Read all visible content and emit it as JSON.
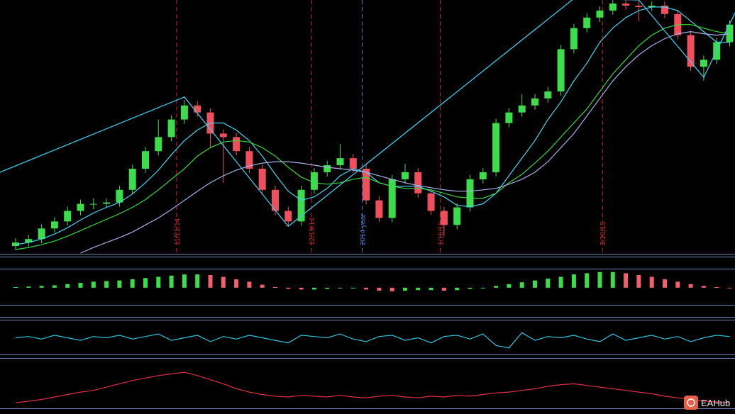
{
  "chart_data": [
    {
      "type": "candlestick",
      "ylim": [
        0,
        360
      ],
      "up_color": "#3ddc4a",
      "down_color": "#f0505e",
      "open": [
        10,
        15,
        20,
        35,
        45,
        60,
        70,
        70,
        72,
        90,
        120,
        145,
        165,
        190,
        210,
        200,
        170,
        165,
        145,
        120,
        90,
        60,
        45,
        90,
        115,
        125,
        135,
        120,
        75,
        50,
        105,
        115,
        85,
        60,
        40,
        65,
        105,
        115,
        185,
        200,
        210,
        220,
        230,
        290,
        320,
        335,
        345,
        355,
        352,
        350,
        352,
        340,
        310,
        265,
        275,
        300
      ],
      "high": [
        21,
        26,
        41,
        51,
        66,
        76,
        78,
        78,
        96,
        126,
        151,
        190,
        196,
        218,
        216,
        206,
        176,
        171,
        151,
        126,
        96,
        66,
        96,
        121,
        131,
        155,
        141,
        126,
        81,
        111,
        127,
        121,
        91,
        66,
        71,
        111,
        121,
        191,
        206,
        226,
        226,
        236,
        296,
        326,
        341,
        351,
        361,
        362,
        358,
        358,
        358,
        346,
        316,
        281,
        306,
        331
      ],
      "low": [
        4,
        9,
        14,
        29,
        39,
        54,
        62,
        64,
        66,
        84,
        114,
        139,
        159,
        184,
        194,
        150,
        100,
        139,
        114,
        84,
        54,
        38,
        39,
        84,
        109,
        119,
        114,
        69,
        44,
        44,
        99,
        79,
        54,
        24,
        34,
        59,
        99,
        109,
        179,
        194,
        204,
        214,
        224,
        284,
        314,
        329,
        339,
        346,
        330,
        344,
        334,
        304,
        259,
        245,
        269,
        294
      ],
      "close": [
        15,
        20,
        35,
        45,
        60,
        70,
        70,
        72,
        90,
        120,
        145,
        165,
        190,
        210,
        200,
        170,
        165,
        145,
        120,
        90,
        60,
        45,
        90,
        115,
        125,
        135,
        120,
        75,
        50,
        105,
        115,
        85,
        60,
        40,
        65,
        105,
        115,
        185,
        200,
        210,
        220,
        230,
        290,
        320,
        335,
        345,
        355,
        352,
        350,
        352,
        340,
        310,
        265,
        275,
        300,
        325
      ],
      "lines": [
        {
          "color": "#46d6f0",
          "values": [
            12,
            15,
            20,
            27,
            36,
            47,
            57,
            65,
            72,
            84,
            100,
            118,
            140,
            160,
            175,
            185,
            185,
            175,
            160,
            138,
            112,
            88,
            75,
            80,
            92,
            110,
            120,
            115,
            100,
            95,
            95,
            95,
            88,
            80,
            68,
            66,
            70,
            85,
            110,
            135,
            160,
            190,
            215,
            245,
            270,
            300,
            320,
            335,
            345,
            350,
            350,
            345,
            330,
            315,
            300,
            300
          ]
        },
        {
          "color": "#3ad83a",
          "values": [
            5,
            8,
            12,
            17,
            24,
            32,
            40,
            48,
            56,
            65,
            76,
            90,
            105,
            120,
            138,
            150,
            158,
            160,
            158,
            150,
            138,
            122,
            108,
            100,
            98,
            100,
            105,
            108,
            100,
            95,
            92,
            92,
            90,
            85,
            80,
            78,
            78,
            85,
            100,
            112,
            128,
            145,
            165,
            185,
            205,
            230,
            255,
            275,
            295,
            310,
            320,
            325,
            325,
            320,
            315,
            312
          ]
        },
        {
          "color": "#a8b0e8",
          "values": [
            null,
            null,
            null,
            null,
            null,
            0,
            8,
            15,
            22,
            30,
            40,
            50,
            62,
            75,
            88,
            100,
            110,
            118,
            124,
            128,
            130,
            130,
            128,
            125,
            122,
            120,
            118,
            115,
            110,
            105,
            100,
            96,
            93,
            90,
            88,
            88,
            90,
            92,
            98,
            105,
            115,
            130,
            150,
            170,
            195,
            220,
            245,
            265,
            282,
            295,
            305,
            312,
            315,
            312,
            310,
            312
          ]
        }
      ],
      "zigzag": {
        "color": "#40c8e8",
        "x": [
          -1.2,
          13,
          21,
          43,
          48,
          53,
          55.5
        ],
        "values": [
          115,
          222,
          38,
          362,
          360,
          250,
          345
        ]
      },
      "markers": [
        {
          "x": 12.4,
          "label": "11/21/14",
          "color": "#c42a2a"
        },
        {
          "x": 22.8,
          "label": "12/19/14",
          "color": "#c42a2a"
        },
        {
          "x": 26.7,
          "label": "2014 year",
          "color": "#4a78c8"
        },
        {
          "x": 32.7,
          "label": "1/16/15",
          "color": "#c42a2a"
        },
        {
          "x": 45.2,
          "label": "2/20/15",
          "color": "#c42a2a"
        }
      ]
    },
    {
      "type": "bar",
      "ylim": [
        -26,
        28
      ],
      "up_color": "#3ddc4a",
      "down_color": "#f0606e",
      "values": [
        1,
        2,
        3,
        4,
        6,
        8,
        10,
        11,
        12,
        14,
        16,
        18,
        20,
        22,
        22,
        21,
        18,
        14,
        10,
        5,
        1,
        -2,
        -3,
        -3,
        -2,
        -1,
        -1,
        -3,
        -5,
        -6,
        -5,
        -4,
        -4,
        -5,
        -4,
        -2,
        0,
        3,
        6,
        9,
        12,
        15,
        18,
        22,
        24,
        26,
        26,
        24,
        21,
        18,
        14,
        10,
        6,
        3,
        1,
        0
      ]
    },
    {
      "type": "line",
      "ylim": [
        -12,
        12
      ],
      "color": "#30c4dc",
      "values": [
        0,
        1,
        -1,
        2,
        0,
        -2,
        1,
        0,
        2,
        -1,
        1,
        3,
        -2,
        0,
        2,
        -3,
        1,
        -1,
        2,
        0,
        -2,
        -4,
        2,
        1,
        0,
        3,
        -1,
        -3,
        1,
        2,
        -2,
        0,
        -4,
        1,
        2,
        -1,
        3,
        -6,
        -8,
        4,
        -2,
        1,
        0,
        2,
        -1,
        -3,
        3,
        -2,
        0,
        2,
        -1,
        1,
        -3,
        0,
        2,
        1
      ]
    },
    {
      "type": "line",
      "ylim": [
        0,
        55
      ],
      "color": "#e0303e",
      "values": [
        5,
        7,
        9,
        12,
        15,
        18,
        20,
        24,
        28,
        32,
        35,
        38,
        40,
        42,
        38,
        33,
        28,
        22,
        18,
        15,
        13,
        12,
        14,
        13,
        12,
        14,
        12,
        11,
        13,
        14,
        12,
        11,
        13,
        12,
        14,
        13,
        15,
        17,
        18,
        20,
        22,
        25,
        27,
        28,
        26,
        24,
        22,
        20,
        18,
        16,
        13,
        11,
        9,
        7,
        6,
        5
      ]
    }
  ],
  "watermark": "EAHub"
}
